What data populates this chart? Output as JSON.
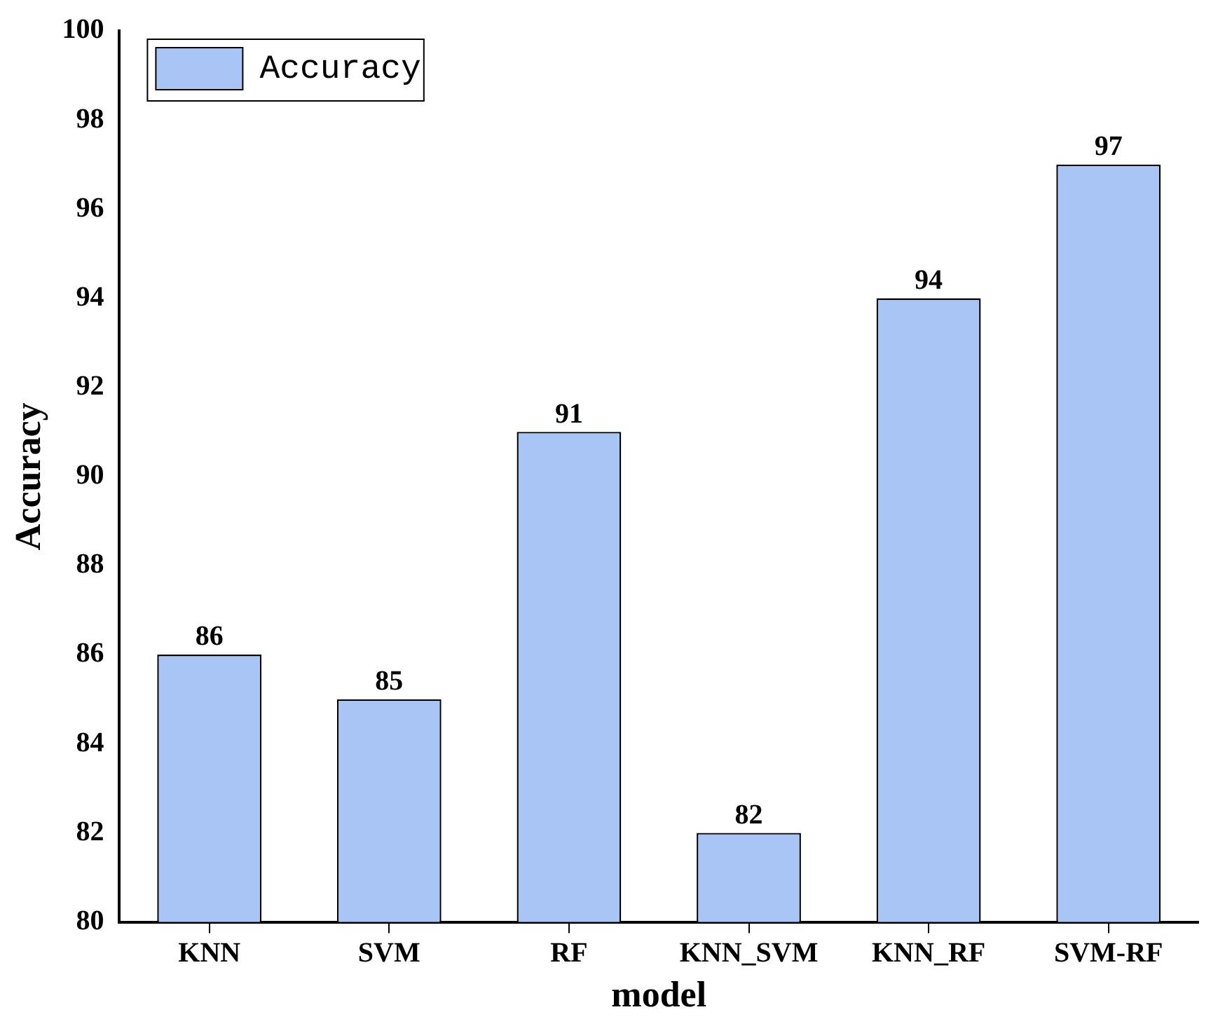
{
  "chart_data": {
    "type": "bar",
    "xlabel": "model",
    "ylabel": "Accuracy",
    "categories": [
      "KNN",
      "SVM",
      "RF",
      "KNN_SVM",
      "KNN_RF",
      "SVM-RF"
    ],
    "series": [
      {
        "name": "Accuracy",
        "color": "#a9c5f5",
        "values": [
          86,
          85,
          91,
          82,
          94,
          97
        ]
      }
    ],
    "ylim": [
      80,
      100
    ],
    "yticks": [
      80,
      82,
      84,
      86,
      88,
      90,
      92,
      94,
      96,
      98,
      100
    ],
    "data_labels": true,
    "legend": "top left",
    "grid": false
  }
}
